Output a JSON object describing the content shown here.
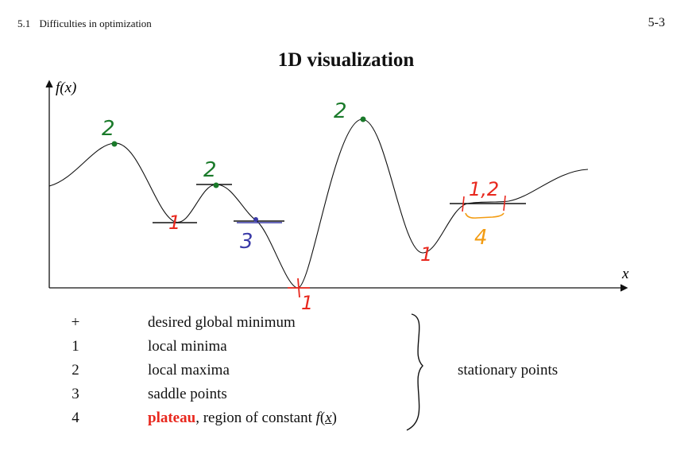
{
  "header": {
    "section_number": "5.1",
    "section_title": "Difficulties in optimization",
    "page_number": "5-3"
  },
  "figure": {
    "title": "1D visualization",
    "y_axis_label": "f(x)",
    "x_axis_label": "x",
    "annotations": {
      "global_min": "1",
      "local_min_1": "1",
      "local_min_2": "1",
      "local_max_1": "2",
      "local_max_2": "2",
      "local_max_3": "2",
      "saddle": "3",
      "plateau_labels": "1,2",
      "plateau_number": "4"
    },
    "colors": {
      "curve": "#111111",
      "local_max": "#1a7a2a",
      "local_min": "#e8281e",
      "saddle": "#3a3aa8",
      "plateau": "#f39c12"
    }
  },
  "legend": {
    "items": [
      {
        "symbol": "+",
        "text": "desired global minimum"
      },
      {
        "symbol": "1",
        "text": "local minima"
      },
      {
        "symbol": "2",
        "text": "local maxima"
      },
      {
        "symbol": "3",
        "text": "saddle points"
      },
      {
        "symbol": "4",
        "highlight": "plateau",
        "text": ", region of constant "
      }
    ],
    "fx_symbol": "f",
    "fx_open": "(",
    "fx_var": "x",
    "fx_close": ")",
    "group_label": "stationary points"
  }
}
